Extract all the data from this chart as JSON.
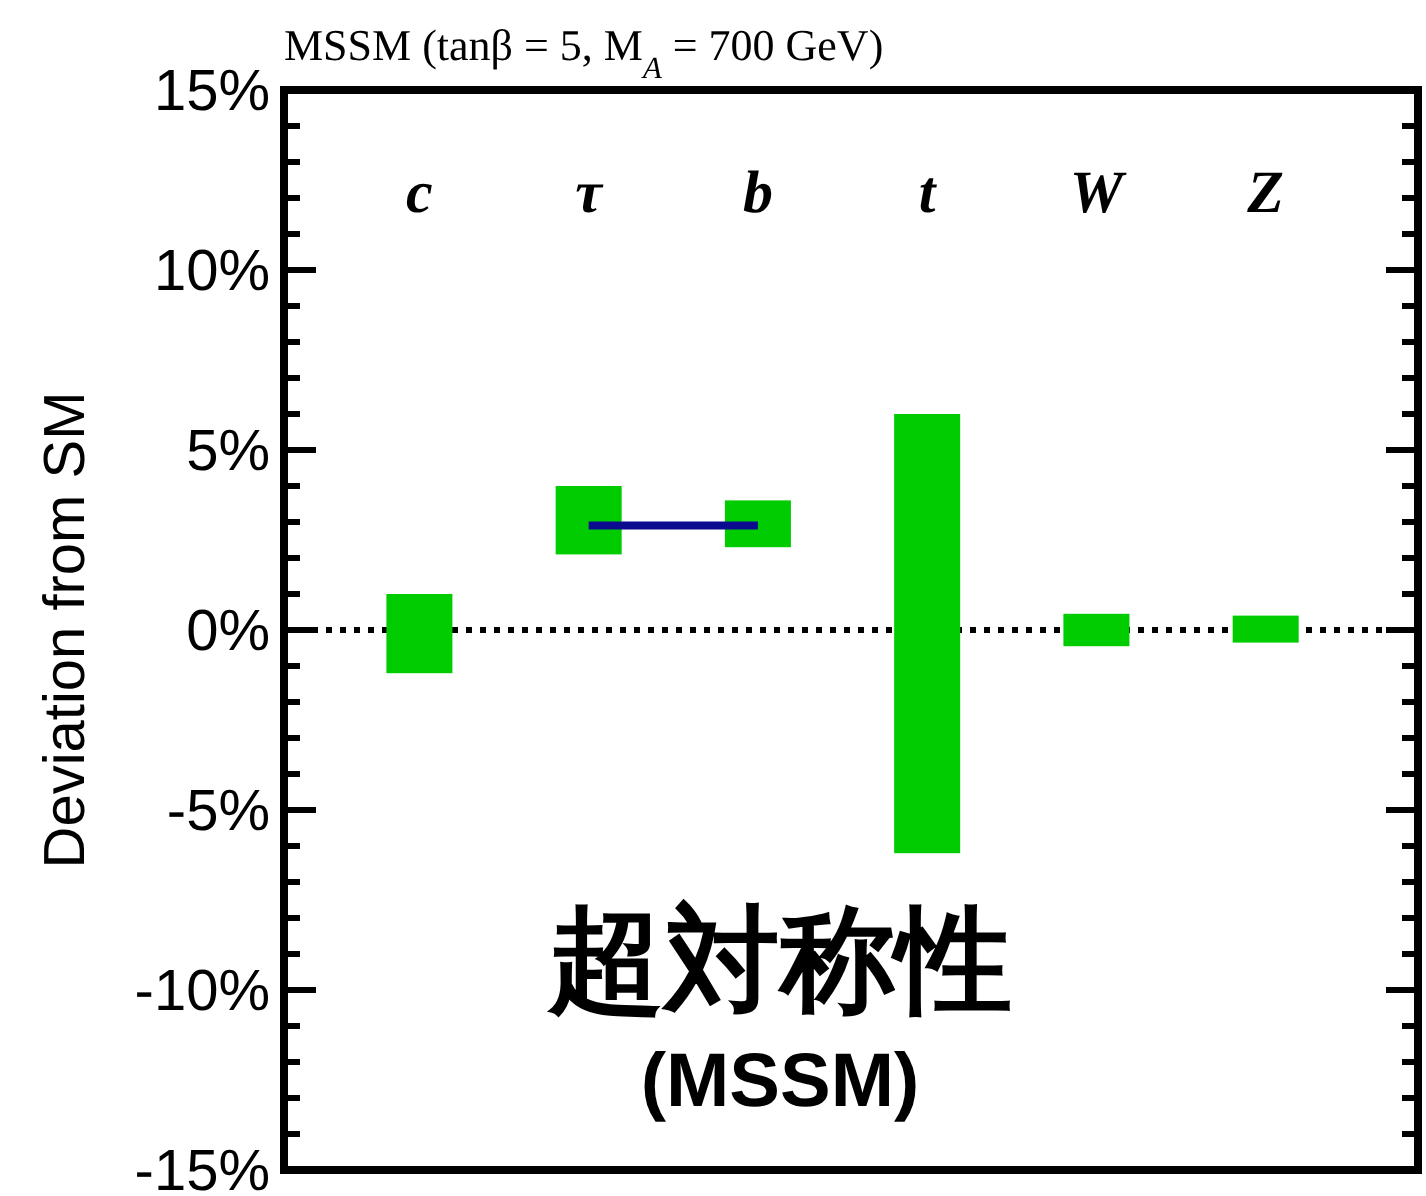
{
  "chart_data": {
    "type": "bar",
    "title": "MSSM (tanβ = 5, M$_{A}$ = 700 GeV)",
    "ylabel": "Deviation from SM",
    "categories": [
      "c",
      "τ",
      "b",
      "t",
      "W",
      "Z"
    ],
    "series": [
      {
        "color": "#00cc00",
        "base": [
          -1.2,
          2.1,
          2.3,
          -6.2,
          -0.45,
          -0.35
        ],
        "values": [
          2.2,
          1.9,
          1.3,
          12.2,
          0.9,
          0.75
        ]
      },
      {
        "type": "line",
        "color": "#0b0b8f",
        "x": [
          "τ",
          "b"
        ],
        "values": [
          2.9,
          2.9
        ]
      }
    ],
    "ylim": [
      -15,
      15
    ],
    "yticks": [
      {
        "value": -15,
        "label": "-15%"
      },
      {
        "value": -14,
        "label": null
      },
      {
        "value": -13,
        "label": null
      },
      {
        "value": -12,
        "label": null
      },
      {
        "value": -11,
        "label": null
      },
      {
        "value": -10,
        "label": "-10%"
      },
      {
        "value": -9,
        "label": null
      },
      {
        "value": -8,
        "label": null
      },
      {
        "value": -7,
        "label": null
      },
      {
        "value": -6,
        "label": null
      },
      {
        "value": -5,
        "label": "-5%"
      },
      {
        "value": -4,
        "label": null
      },
      {
        "value": -3,
        "label": null
      },
      {
        "value": -2,
        "label": null
      },
      {
        "value": -1,
        "label": null
      },
      {
        "value": 0,
        "label": "0%"
      },
      {
        "value": 1,
        "label": null
      },
      {
        "value": 2,
        "label": null
      },
      {
        "value": 3,
        "label": null
      },
      {
        "value": 4,
        "label": null
      },
      {
        "value": 5,
        "label": "5%"
      },
      {
        "value": 6,
        "label": null
      },
      {
        "value": 7,
        "label": null
      },
      {
        "value": 8,
        "label": null
      },
      {
        "value": 9,
        "label": null
      },
      {
        "value": 10,
        "label": "10%"
      },
      {
        "value": 11,
        "label": null
      },
      {
        "value": 12,
        "label": null
      },
      {
        "value": 13,
        "label": null
      },
      {
        "value": 14,
        "label": null
      },
      {
        "value": 15,
        "label": "15%"
      }
    ],
    "ref_lines": [
      {
        "axis": "y",
        "value": 0,
        "color": "#000000",
        "line_style": "dotted"
      }
    ],
    "annotations": [
      "超対称性",
      "(MSSM)"
    ]
  }
}
